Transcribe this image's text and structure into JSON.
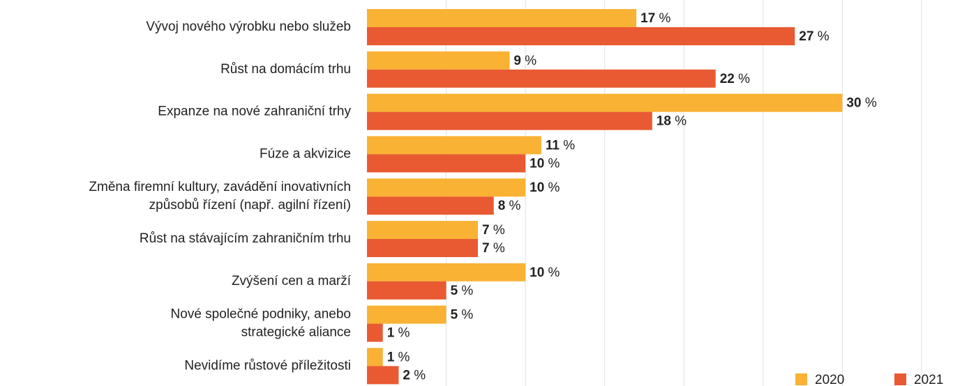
{
  "chart_data": {
    "type": "bar",
    "orientation": "horizontal",
    "categories": [
      "Vývoj nového výrobku nebo služeb",
      "Růst na domácím trhu",
      "Expanze na nové zahraniční trhy",
      "Fúze a akvizice",
      "Změna firemní kultury, zavádění inovativních\nzpůsobů řízení (např. agilní řízení)",
      "Růst na stávajícím zahraničním trhu",
      "Zvýšení cen a marží",
      "Nové společné podniky, anebo\nstrategické aliance",
      "Nevidíme růstové příležitosti"
    ],
    "series": [
      {
        "name": "2020",
        "color": "#f9b233",
        "values": [
          17,
          9,
          30,
          11,
          10,
          7,
          10,
          5,
          1
        ],
        "value_labels": [
          "17 %",
          "9 %",
          "30 %",
          "11 %",
          "10 %",
          "7 %",
          "10 %",
          "5 %",
          "1 %"
        ]
      },
      {
        "name": "2021",
        "color": "#e95a32",
        "values": [
          27,
          22,
          18,
          10,
          8,
          7,
          5,
          1,
          2
        ],
        "value_labels": [
          "27 %",
          "22 %",
          "18 %",
          "10 %",
          "8 %",
          "7 %",
          "5 %",
          "1 %",
          "2 %"
        ]
      }
    ],
    "xlim": [
      0,
      35
    ],
    "xticks": [
      5,
      10,
      15,
      20,
      25,
      30,
      35
    ],
    "grid": true,
    "legend": "bottom-right"
  }
}
